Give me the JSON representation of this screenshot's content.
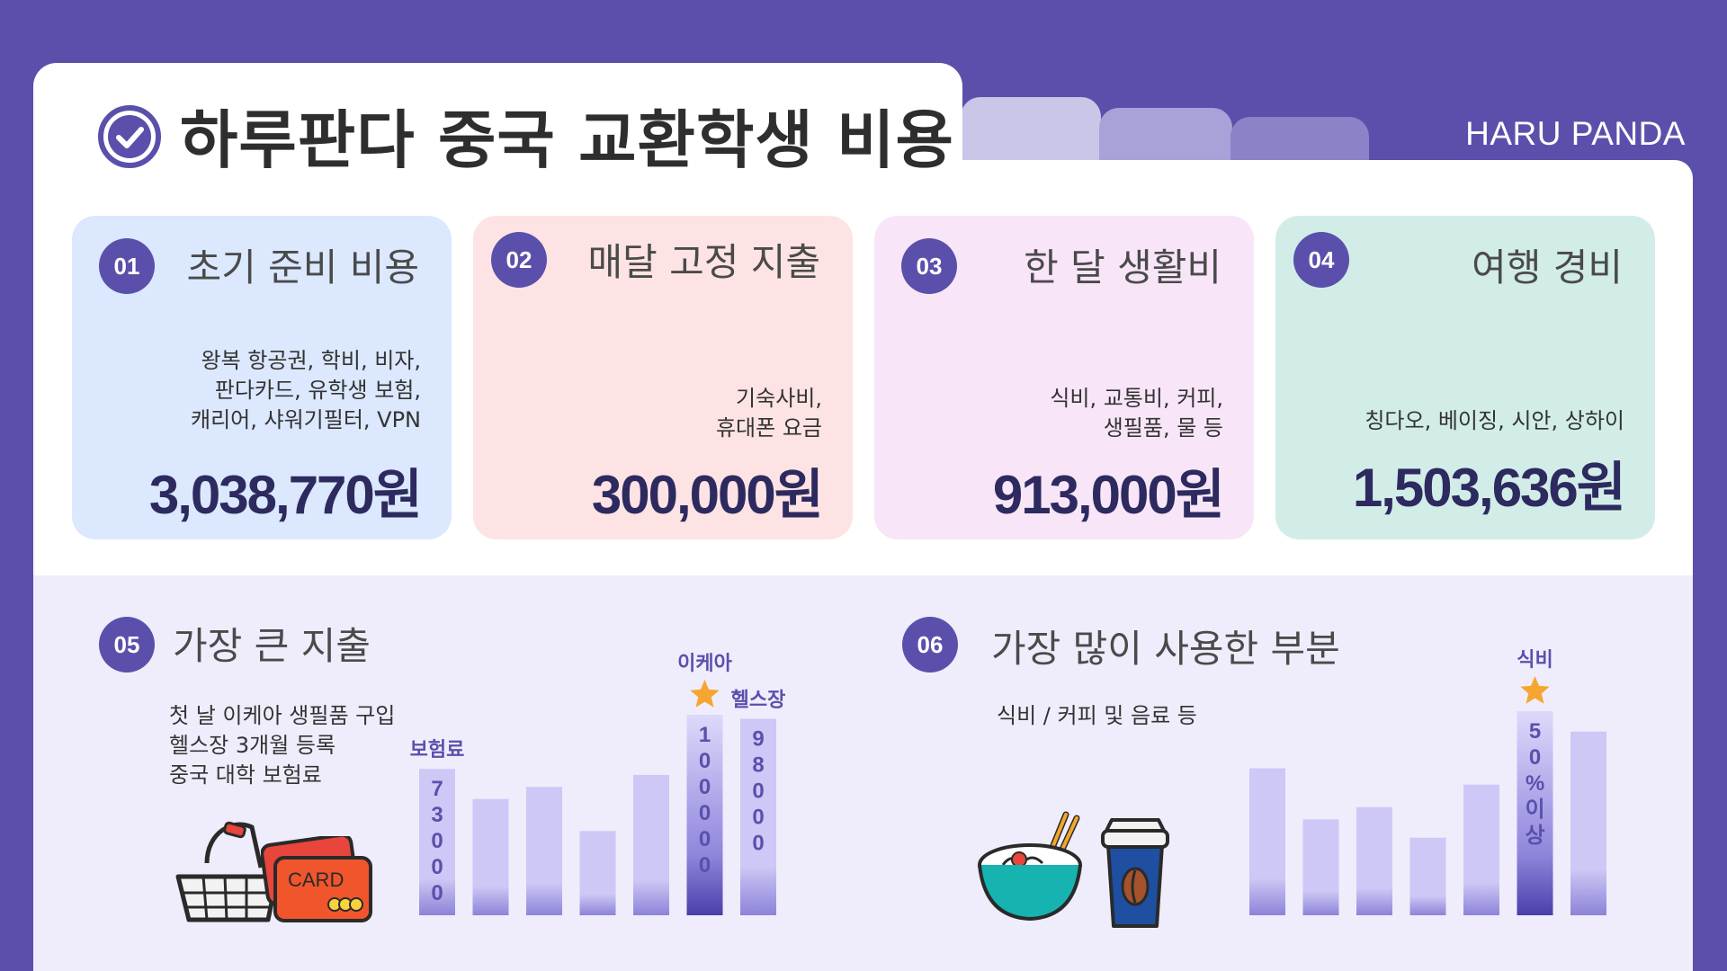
{
  "header": {
    "title": "하루판다 중국 교환학생 비용",
    "brand": "HARU PANDA",
    "accent_color": "#5a50ac",
    "icon": "check-circle-icon"
  },
  "cards": [
    {
      "num": "01",
      "title": "초기 준비 비용",
      "desc": [
        "왕복 항공권, 학비, 비자,",
        "판다카드, 유학생 보험,",
        "캐리어, 샤워기필터, VPN"
      ],
      "amount": "3,038,770원",
      "color": "#dbe8fd"
    },
    {
      "num": "02",
      "title": "매달 고정 지출",
      "desc": [
        "기숙사비,",
        "휴대폰 요금"
      ],
      "amount": "300,000원",
      "color": "#fde3e3"
    },
    {
      "num": "03",
      "title": "한 달 생활비",
      "desc": [
        "식비, 교통비, 커피,",
        "생필품, 물 등"
      ],
      "amount": "913,000원",
      "color": "#f8e6f8"
    },
    {
      "num": "04",
      "title": "여행 경비",
      "desc": [
        "칭다오, 베이징, 시안, 상하이"
      ],
      "amount": "1,503,636원",
      "color": "#d2ede7"
    }
  ],
  "section5": {
    "num": "05",
    "title": "가장 큰 지출",
    "desc": [
      "첫 날 이케아 생필품 구입",
      "헬스장 3개월 등록",
      "중국 대학 보험료"
    ],
    "icons": [
      "shopping-basket-icon",
      "credit-card-icon"
    ],
    "card_icon_text": "CARD"
  },
  "section6": {
    "num": "06",
    "title": "가장 많이 사용한 부분",
    "desc": [
      "식비 / 커피 및 음료 등"
    ],
    "icons": [
      "noodle-bowl-icon",
      "coffee-cup-icon"
    ]
  },
  "chart_data": [
    {
      "type": "bar",
      "values": [
        73000,
        58000,
        64000,
        42000,
        70000,
        100000,
        98000
      ],
      "top_labels": [
        "보험료",
        "",
        "",
        "",
        "",
        "이케아",
        "헬스장"
      ],
      "bar_value_labels": [
        "73000",
        "",
        "",
        "",
        "",
        "100000",
        "98000"
      ],
      "highlight_index": 5,
      "colors": {
        "bar": "#cdc8f5",
        "highlight": "#5a50ac",
        "star": "#f7a531"
      }
    },
    {
      "type": "bar",
      "values": [
        72,
        47,
        53,
        38,
        64,
        100,
        90
      ],
      "top_labels": [
        "",
        "",
        "",
        "",
        "",
        "식비",
        ""
      ],
      "bar_value_labels": [
        "",
        "",
        "",
        "",
        "",
        "50%이상",
        ""
      ],
      "highlight_index": 5,
      "colors": {
        "bar": "#cdc8f5",
        "highlight": "#5a50ac",
        "star": "#f7a531"
      }
    }
  ]
}
